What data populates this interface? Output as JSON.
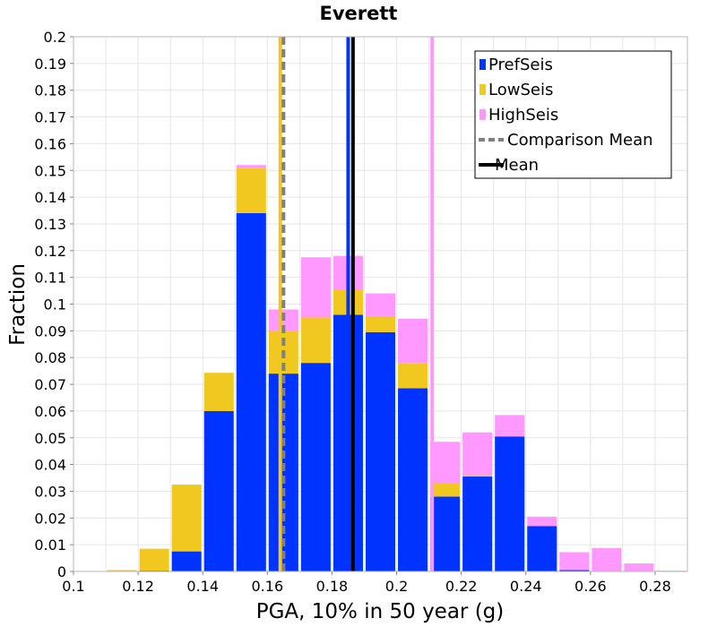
{
  "chart_data": {
    "type": "bar",
    "stacked": true,
    "title": "Everett",
    "xlabel": "PGA, 10% in 50 year (g)",
    "ylabel": "Fraction",
    "xlim": [
      0.1,
      0.29
    ],
    "ylim": [
      0,
      0.2
    ],
    "x_ticks": [
      "0.1",
      "0.12",
      "0.14",
      "0.16",
      "0.18",
      "0.2",
      "0.22",
      "0.24",
      "0.26",
      "0.28"
    ],
    "y_ticks": [
      "0",
      "0.01",
      "0.02",
      "0.03",
      "0.04",
      "0.05",
      "0.06",
      "0.07",
      "0.08",
      "0.09",
      "0.1",
      "0.11",
      "0.12",
      "0.13",
      "0.14",
      "0.15",
      "0.16",
      "0.17",
      "0.18",
      "0.19",
      "0.2"
    ],
    "bin_width": 0.01,
    "bin_centers": [
      0.115,
      0.125,
      0.135,
      0.145,
      0.155,
      0.165,
      0.175,
      0.185,
      0.195,
      0.205,
      0.215,
      0.225,
      0.235,
      0.245,
      0.255,
      0.265,
      0.275,
      0.285
    ],
    "series": [
      {
        "name": "PrefSeis",
        "color": "#0033ff",
        "values": [
          0.0,
          0.0003,
          0.0075,
          0.06,
          0.134,
          0.074,
          0.078,
          0.096,
          0.0895,
          0.0685,
          0.028,
          0.0355,
          0.0505,
          0.017,
          0.0005,
          0.0,
          0.0,
          0.0
        ]
      },
      {
        "name": "LowSeis",
        "color": "#f0c820",
        "values": [
          0.0005,
          0.0082,
          0.025,
          0.0143,
          0.017,
          0.016,
          0.017,
          0.0095,
          0.006,
          0.0095,
          0.005,
          0.0005,
          0.0,
          0.0,
          0.0,
          0.0,
          0.0,
          0.0
        ]
      },
      {
        "name": "HighSeis",
        "color": "#ff99ff",
        "values": [
          0.0,
          0.0,
          0.0,
          0.0,
          0.001,
          0.008,
          0.0225,
          0.0125,
          0.0085,
          0.0165,
          0.0155,
          0.016,
          0.008,
          0.0035,
          0.0067,
          0.0087,
          0.003,
          0.0003
        ]
      }
    ],
    "lines": [
      {
        "name": "LowSeis mean",
        "x": 0.164,
        "color": "#f0c820",
        "style": "solid"
      },
      {
        "name": "HighSeis mean",
        "x": 0.211,
        "color": "#ff99ff",
        "style": "solid"
      },
      {
        "name": "PrefSeis mean",
        "x": 0.185,
        "color": "#0033ff",
        "style": "solid"
      },
      {
        "name": "Comparison Mean",
        "x": 0.165,
        "color": "#808080",
        "style": "dashed"
      },
      {
        "name": "Mean",
        "x": 0.1865,
        "color": "#000000",
        "style": "solid"
      }
    ],
    "legend": {
      "position": "top-right",
      "entries": [
        {
          "label": "PrefSeis",
          "color": "#0033ff",
          "kind": "box"
        },
        {
          "label": "LowSeis",
          "color": "#f0c820",
          "kind": "box"
        },
        {
          "label": "HighSeis",
          "color": "#ff99ff",
          "kind": "box"
        },
        {
          "label": "Comparison Mean",
          "color": "#808080",
          "kind": "dashed"
        },
        {
          "label": "Mean",
          "color": "#000000",
          "kind": "solid"
        }
      ]
    },
    "grid": true
  }
}
